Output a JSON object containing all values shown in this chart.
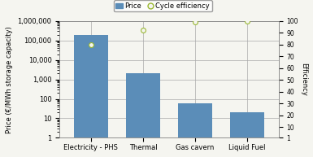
{
  "categories": [
    "Electricity - PHS",
    "Thermal",
    "Gas cavern",
    "Liquid Fuel"
  ],
  "bar_values": [
    200000,
    2000,
    60,
    20
  ],
  "cycle_efficiency": [
    80,
    92,
    99,
    100
  ],
  "bar_color": "#5b8db8",
  "efficiency_marker_facecolor": "#f5f5f0",
  "efficiency_marker_edge": "#9ab832",
  "ylabel_left": "Price (€/MWh storage capacity)",
  "ylabel_right": "Efficiency",
  "legend_price_label": "Price",
  "legend_eff_label": "Cycle efficiency",
  "background_color": "#f5f5f0",
  "grid_color": "#aaaaaa",
  "right_yticks": [
    1,
    10,
    20,
    30,
    40,
    50,
    60,
    70,
    80,
    90,
    100
  ],
  "right_yticklabels": [
    "1",
    "10",
    "20",
    "30",
    "40",
    "50",
    "60",
    "70",
    "80",
    "90",
    "100"
  ]
}
